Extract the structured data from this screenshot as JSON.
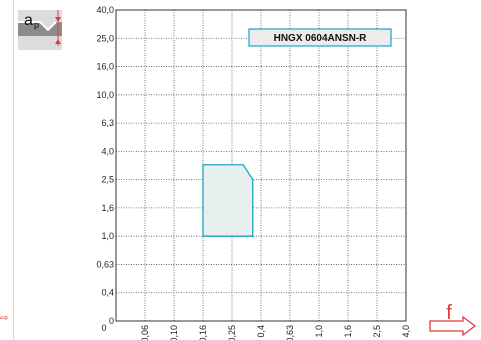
{
  "colors": {
    "grid": "#555555",
    "region_stroke": "#1ba3c6",
    "region_fill": "#e6f0ef",
    "accent_red": "#e23a3a",
    "label_box_border": "#1ba3c6",
    "label_box_fill": "#ececec"
  },
  "icons": {
    "ap_icon": "ap-depth-of-cut-icon",
    "f_arrow": "feed-arrow-icon",
    "left_arrow": "arrow-right-icon"
  },
  "ap_symbol": {
    "main": "a",
    "sub": "p"
  },
  "feed_symbol": "f",
  "left_arrow_glyph": "⇨",
  "chart_data": {
    "type": "area",
    "title": "HNGX 0604ANSN-R",
    "xlabel": "f",
    "ylabel": "ap",
    "x_ticks": [
      "0",
      "0,06",
      "0,10",
      "0,16",
      "0,25",
      "0,4",
      "0,63",
      "1,0",
      "1,6",
      "2,5",
      "4,0"
    ],
    "y_ticks": [
      "0",
      "0,4",
      "0,63",
      "1,0",
      "1,6",
      "2,5",
      "4,0",
      "6,3",
      "10,0",
      "16,0",
      "25,0",
      "40,0"
    ],
    "grid": true,
    "region": {
      "name": "HNGX 0604ANSN-R",
      "points": [
        {
          "x": 0.16,
          "y": 1.0
        },
        {
          "x": 0.16,
          "y": 3.2
        },
        {
          "x": 0.3,
          "y": 3.2
        },
        {
          "x": 0.35,
          "y": 2.5
        },
        {
          "x": 0.35,
          "y": 1.0
        }
      ]
    }
  }
}
